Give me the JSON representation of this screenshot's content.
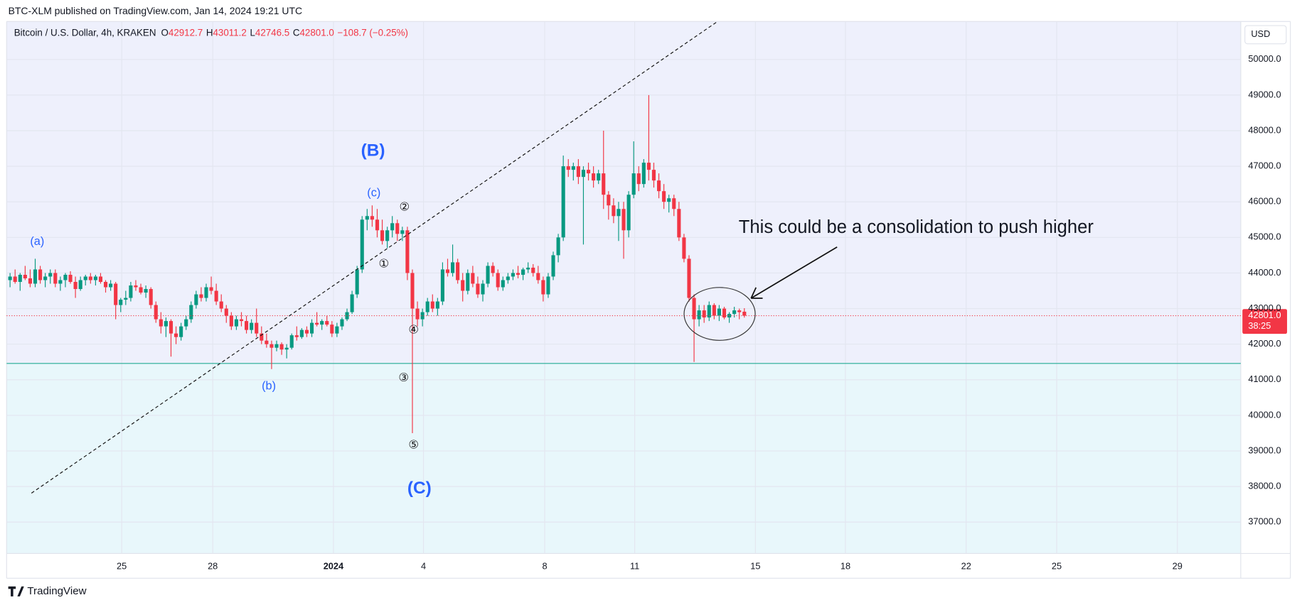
{
  "chart_data": {
    "type": "candlestick",
    "published": "BTC-XLM published on TradingView.com, Jan 14, 2024 19:21 UTC",
    "symbol": "Bitcoin / U.S. Dollar, 4h, KRAKEN",
    "ohlc": [
      {
        "key": "O",
        "label": "42912.7"
      },
      {
        "key": "H",
        "label": "43011.2"
      },
      {
        "key": "L",
        "label": "42746.5"
      },
      {
        "key": "C",
        "label": "42801.0"
      }
    ],
    "change": "−108.7 (−0.25%)",
    "currency": "USD",
    "last_price_label": "42801.0",
    "countdown": "38:25",
    "brand": "TradingView",
    "up_color": "#089981",
    "down_color": "#f23645",
    "support_level": 41458,
    "ylim": [
      36119,
      51068
    ],
    "yticks": [
      {
        "value": 37000,
        "label": "37000.0"
      },
      {
        "value": 38000,
        "label": "38000.0"
      },
      {
        "value": 39000,
        "label": "39000.0"
      },
      {
        "value": 40000,
        "label": "40000.0"
      },
      {
        "value": 41000,
        "label": "41000.0"
      },
      {
        "value": 42000,
        "label": "42000.0"
      },
      {
        "value": 43000,
        "label": "43000.0"
      },
      {
        "value": 44000,
        "label": "44000.0"
      },
      {
        "value": 45000,
        "label": "45000.0"
      },
      {
        "value": 46000,
        "label": "46000.0"
      },
      {
        "value": 47000,
        "label": "47000.0"
      },
      {
        "value": 48000,
        "label": "48000.0"
      },
      {
        "value": 49000,
        "label": "49000.0"
      },
      {
        "value": 50000,
        "label": "50000.0"
      }
    ],
    "xlim": [
      -2,
      244.7
    ],
    "xticks": [
      {
        "value": 22.2,
        "label": "25"
      },
      {
        "value": 40.3,
        "label": "28"
      },
      {
        "value": 64.3,
        "label": "2024"
      },
      {
        "value": 82.2,
        "label": "4"
      },
      {
        "value": 106.3,
        "label": "8"
      },
      {
        "value": 124.2,
        "label": "11"
      },
      {
        "value": 148.2,
        "label": "15"
      },
      {
        "value": 166.1,
        "label": "18"
      },
      {
        "value": 190.1,
        "label": "22"
      },
      {
        "value": 208.1,
        "label": "25"
      },
      {
        "value": 232.1,
        "label": "29"
      }
    ],
    "annotations": {
      "note": "This could be a consolidation to push higher",
      "a": "(a)",
      "b": "(b)",
      "c": "(c)",
      "B": "(B)",
      "C": "(C)",
      "w1": "①",
      "w2": "②",
      "w3": "③",
      "w4": "④",
      "w5": "⑤"
    },
    "candles": [
      [
        43800,
        44000,
        43600,
        43900
      ],
      [
        43900,
        44100,
        43700,
        43750
      ],
      [
        43750,
        44000,
        43500,
        43950
      ],
      [
        43950,
        44200,
        43800,
        43850
      ],
      [
        43850,
        44100,
        43600,
        43700
      ],
      [
        43700,
        44400,
        43600,
        44100
      ],
      [
        44100,
        44200,
        43700,
        43800
      ],
      [
        43800,
        44000,
        43600,
        43900
      ],
      [
        43900,
        44100,
        43700,
        44000
      ],
      [
        44000,
        44100,
        43600,
        43700
      ],
      [
        43700,
        43900,
        43500,
        43800
      ],
      [
        43800,
        44000,
        43600,
        43950
      ],
      [
        43950,
        44050,
        43700,
        43750
      ],
      [
        43750,
        43900,
        43300,
        43550
      ],
      [
        43550,
        43900,
        43500,
        43800
      ],
      [
        43800,
        43950,
        43650,
        43900
      ],
      [
        43900,
        44000,
        43700,
        43800
      ],
      [
        43800,
        43950,
        43650,
        43900
      ],
      [
        43900,
        44000,
        43700,
        43750
      ],
      [
        43750,
        43800,
        43450,
        43600
      ],
      [
        43600,
        43800,
        43500,
        43700
      ],
      [
        43700,
        43750,
        42700,
        43100
      ],
      [
        43100,
        43300,
        42900,
        43250
      ],
      [
        43250,
        43500,
        43100,
        43300
      ],
      [
        43300,
        43750,
        43200,
        43650
      ],
      [
        43650,
        43800,
        43500,
        43600
      ],
      [
        43600,
        43700,
        43400,
        43450
      ],
      [
        43450,
        43650,
        43300,
        43550
      ],
      [
        43550,
        43600,
        43000,
        43100
      ],
      [
        43100,
        43200,
        42600,
        42700
      ],
      [
        42700,
        42900,
        42300,
        42500
      ],
      [
        42500,
        42750,
        42200,
        42650
      ],
      [
        42650,
        42700,
        41650,
        42300
      ],
      [
        42300,
        42500,
        42000,
        42200
      ],
      [
        42200,
        42600,
        42100,
        42500
      ],
      [
        42500,
        42800,
        42400,
        42700
      ],
      [
        42700,
        43200,
        42600,
        43100
      ],
      [
        43100,
        43500,
        43000,
        43400
      ],
      [
        43400,
        43600,
        43200,
        43300
      ],
      [
        43300,
        43700,
        43200,
        43600
      ],
      [
        43600,
        43900,
        43400,
        43500
      ],
      [
        43500,
        43700,
        43100,
        43200
      ],
      [
        43200,
        43400,
        42900,
        43000
      ],
      [
        43000,
        43100,
        42600,
        42800
      ],
      [
        42800,
        42900,
        42400,
        42500
      ],
      [
        42500,
        42800,
        42400,
        42700
      ],
      [
        42700,
        42900,
        42500,
        42650
      ],
      [
        42650,
        42800,
        42300,
        42400
      ],
      [
        42400,
        42700,
        42300,
        42600
      ],
      [
        42600,
        43000,
        42200,
        42300
      ],
      [
        42300,
        42500,
        42000,
        42100
      ],
      [
        42100,
        42300,
        41900,
        42000
      ],
      [
        42000,
        42100,
        41300,
        41900
      ],
      [
        41900,
        42100,
        41800,
        42000
      ],
      [
        42000,
        42050,
        41700,
        41850
      ],
      [
        41850,
        42000,
        41600,
        41900
      ],
      [
        41900,
        42300,
        41850,
        42250
      ],
      [
        42250,
        42500,
        42100,
        42200
      ],
      [
        42200,
        42450,
        42150,
        42400
      ],
      [
        42400,
        42500,
        42200,
        42300
      ],
      [
        42300,
        42700,
        42200,
        42600
      ],
      [
        42600,
        42900,
        42500,
        42550
      ],
      [
        42550,
        42700,
        42400,
        42650
      ],
      [
        42650,
        42800,
        42500,
        42550
      ],
      [
        42550,
        42650,
        42200,
        42300
      ],
      [
        42300,
        42600,
        42200,
        42500
      ],
      [
        42500,
        42750,
        42400,
        42700
      ],
      [
        42700,
        43000,
        42650,
        42900
      ],
      [
        42900,
        43500,
        42850,
        43400
      ],
      [
        43400,
        44200,
        43300,
        44100
      ],
      [
        44100,
        45600,
        44000,
        45500
      ],
      [
        45500,
        45800,
        45200,
        45600
      ],
      [
        45600,
        45900,
        45300,
        45500
      ],
      [
        45500,
        45800,
        45000,
        45200
      ],
      [
        45200,
        45500,
        44800,
        44900
      ],
      [
        44900,
        45300,
        44700,
        45200
      ],
      [
        45200,
        45600,
        45000,
        45400
      ],
      [
        45400,
        45500,
        44900,
        45100
      ],
      [
        45100,
        45300,
        44900,
        45200
      ],
      [
        45200,
        45300,
        43800,
        44000
      ],
      [
        44000,
        44100,
        39500,
        43000
      ],
      [
        43000,
        43200,
        42500,
        42700
      ],
      [
        42700,
        43000,
        42500,
        42900
      ],
      [
        42900,
        43300,
        42800,
        43200
      ],
      [
        43200,
        43400,
        42900,
        43000
      ],
      [
        43000,
        43300,
        42800,
        43200
      ],
      [
        43200,
        44300,
        43100,
        44100
      ],
      [
        44100,
        44400,
        43900,
        44000
      ],
      [
        44000,
        44800,
        43900,
        44300
      ],
      [
        44300,
        44400,
        43700,
        43800
      ],
      [
        43800,
        44000,
        43200,
        43500
      ],
      [
        43500,
        44100,
        43400,
        44000
      ],
      [
        44000,
        44200,
        43600,
        43700
      ],
      [
        43700,
        43900,
        43300,
        43400
      ],
      [
        43400,
        43800,
        43200,
        43700
      ],
      [
        43700,
        44300,
        43600,
        44200
      ],
      [
        44200,
        44300,
        43900,
        44000
      ],
      [
        44000,
        44100,
        43500,
        43600
      ],
      [
        43600,
        43900,
        43500,
        43800
      ],
      [
        43800,
        44000,
        43700,
        43900
      ],
      [
        43900,
        44100,
        43800,
        44000
      ],
      [
        44000,
        44200,
        43850,
        43950
      ],
      [
        43950,
        44150,
        43800,
        44100
      ],
      [
        44100,
        44300,
        44000,
        44150
      ],
      [
        44150,
        44250,
        43900,
        44000
      ],
      [
        44000,
        44200,
        43700,
        43800
      ],
      [
        43800,
        43900,
        43200,
        43400
      ],
      [
        43400,
        44000,
        43300,
        43900
      ],
      [
        43900,
        44600,
        43800,
        44500
      ],
      [
        44500,
        45100,
        44300,
        45000
      ],
      [
        45000,
        47300,
        44900,
        47000
      ],
      [
        47000,
        47200,
        46700,
        46900
      ],
      [
        46900,
        47100,
        46600,
        47000
      ],
      [
        47000,
        47200,
        46500,
        46700
      ],
      [
        46700,
        47000,
        44800,
        46900
      ],
      [
        46900,
        47100,
        46600,
        46800
      ],
      [
        46800,
        47000,
        46400,
        46600
      ],
      [
        46600,
        46900,
        46500,
        46800
      ],
      [
        46800,
        48000,
        45800,
        46200
      ],
      [
        46200,
        46300,
        45500,
        45900
      ],
      [
        45900,
        46100,
        45400,
        45600
      ],
      [
        45600,
        46000,
        44900,
        45800
      ],
      [
        45800,
        46000,
        44400,
        45200
      ],
      [
        45200,
        46300,
        45000,
        46200
      ],
      [
        46200,
        47700,
        46100,
        46800
      ],
      [
        46800,
        47000,
        46300,
        46500
      ],
      [
        46500,
        47200,
        46400,
        47100
      ],
      [
        47100,
        49000,
        46600,
        46900
      ],
      [
        46900,
        47100,
        46400,
        46600
      ],
      [
        46600,
        46800,
        46100,
        46300
      ],
      [
        46300,
        46500,
        45800,
        46000
      ],
      [
        46000,
        46200,
        45700,
        46100
      ],
      [
        46100,
        46200,
        45600,
        45800
      ],
      [
        45800,
        46000,
        44900,
        45000
      ],
      [
        45000,
        45100,
        44300,
        44400
      ],
      [
        44400,
        44500,
        43200,
        43300
      ],
      [
        43300,
        43400,
        41500,
        42700
      ],
      [
        42700,
        43100,
        42500,
        42950
      ],
      [
        42950,
        43100,
        42600,
        42750
      ],
      [
        42750,
        43200,
        42650,
        43100
      ],
      [
        43100,
        43150,
        42700,
        42800
      ],
      [
        42800,
        43100,
        42650,
        43000
      ],
      [
        43000,
        43050,
        42700,
        42750
      ],
      [
        42750,
        42900,
        42600,
        42850
      ],
      [
        42850,
        43050,
        42750,
        42950
      ],
      [
        42950,
        43000,
        42700,
        42900
      ],
      [
        42912.7,
        43011.2,
        42746.5,
        42801
      ]
    ]
  }
}
